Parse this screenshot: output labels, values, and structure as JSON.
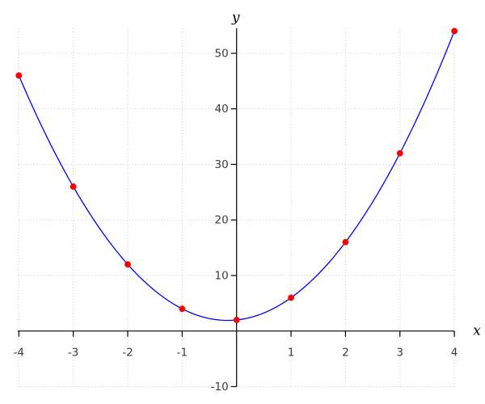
{
  "chart_data": {
    "type": "scatter",
    "title": "",
    "xlabel": "x",
    "ylabel": "y",
    "x": [
      -4,
      -3,
      -2,
      -1,
      0,
      1,
      2,
      3,
      4
    ],
    "y": [
      46,
      26,
      12,
      4,
      2,
      6,
      16,
      32,
      54
    ],
    "curve": "smooth quadratic line through all points (y = 3x^2 + x + 2)",
    "xticks": [
      -4,
      -3,
      -2,
      -1,
      1,
      2,
      3,
      4
    ],
    "yticks": [
      50,
      40,
      30,
      20,
      10,
      -10
    ],
    "xlim": [
      -4,
      4
    ],
    "ylim": [
      -10,
      54.5
    ],
    "grid": "dotted, at every integer x and every 10 in y",
    "legend": "none",
    "colors": {
      "curve": "#0000ff",
      "points": "#ff0000",
      "grid": "#c9c9c9",
      "axis": "#000000",
      "tick_labels": "#3c3c3c"
    }
  }
}
